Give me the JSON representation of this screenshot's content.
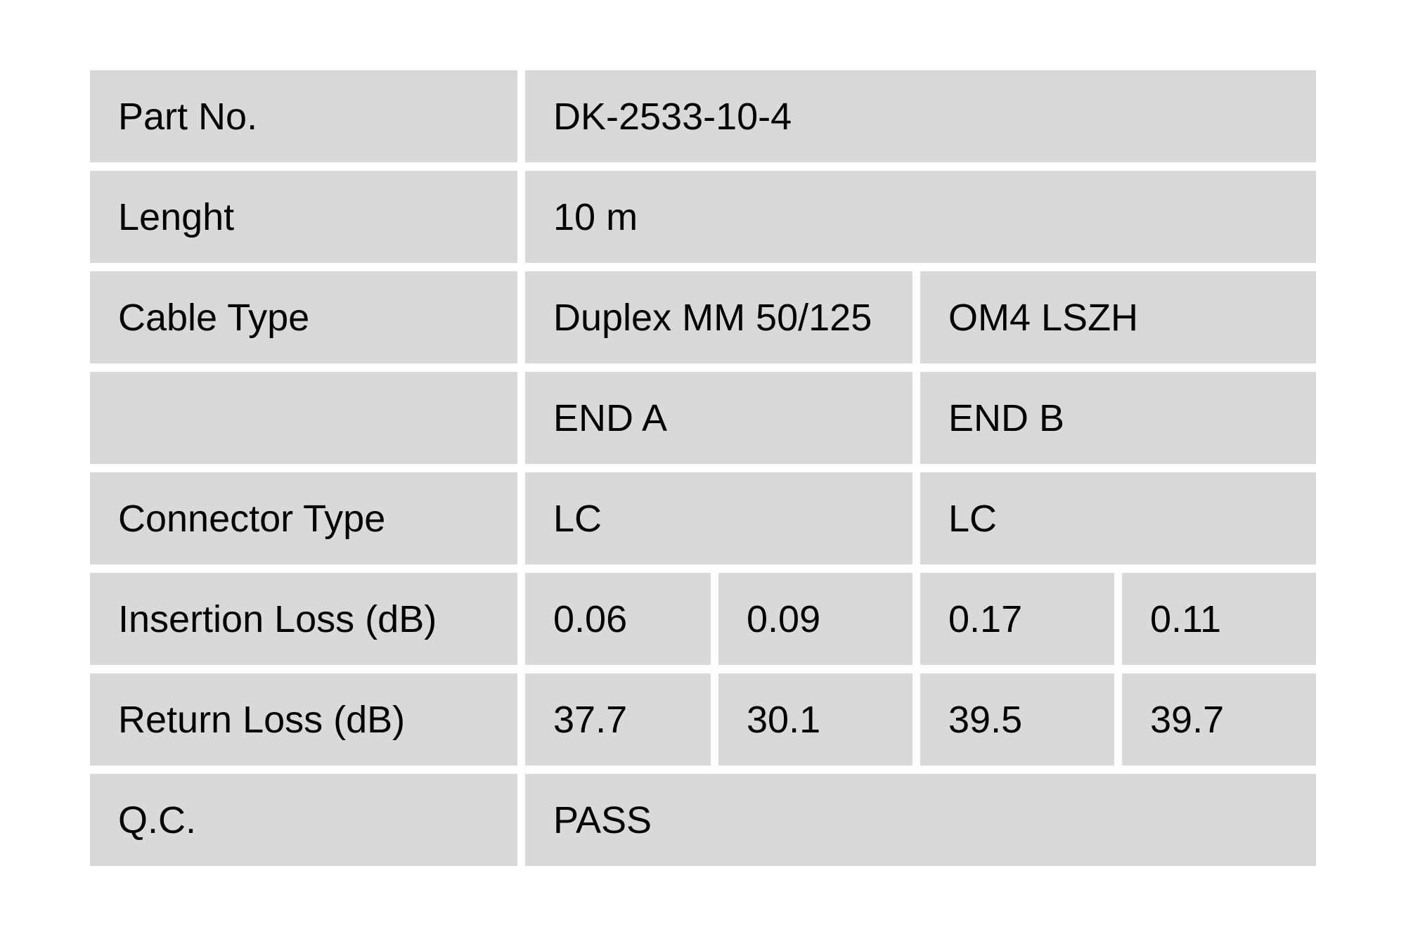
{
  "document_title": "Fiber patch cord quality control test table",
  "colors": {
    "page_bg": "#ffffff",
    "cell_bg": "#d9d9d9",
    "text": "#000000"
  },
  "table": {
    "part_no": {
      "label": "Part No.",
      "value": "DK-2533-10-4"
    },
    "length": {
      "label": "Lenght",
      "value": "10 m"
    },
    "cable_type": {
      "label": "Cable Type",
      "value_a": "Duplex MM 50/125",
      "value_b": "OM4 LSZH"
    },
    "ends": {
      "label": "",
      "end_a": "END A",
      "end_b": "END B"
    },
    "connector_type": {
      "label": "Connector Type",
      "value_a": "LC",
      "value_b": "LC"
    },
    "insertion_loss": {
      "label": "Insertion Loss (dB)",
      "end_a_fiber1": "0.06",
      "end_a_fiber2": "0.09",
      "end_b_fiber1": "0.17",
      "end_b_fiber2": "0.11"
    },
    "return_loss": {
      "label": "Return Loss (dB)",
      "end_a_fiber1": "37.7",
      "end_a_fiber2": "30.1",
      "end_b_fiber1": "39.5",
      "end_b_fiber2": "39.7"
    },
    "qc": {
      "label": "Q.C.",
      "value": "PASS"
    }
  }
}
